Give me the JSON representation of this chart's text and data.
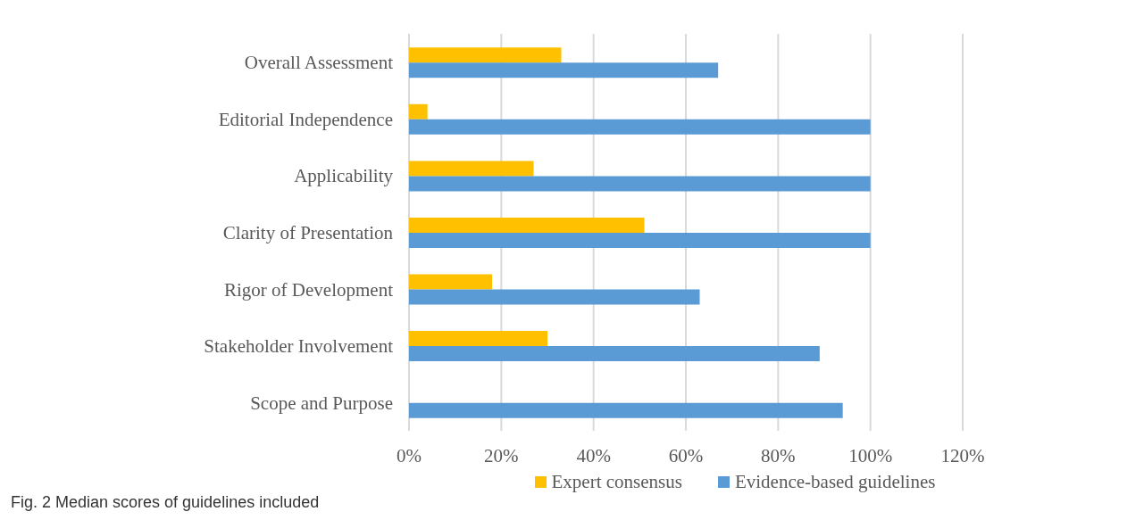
{
  "chart_data": {
    "type": "bar",
    "orientation": "horizontal",
    "categories": [
      "Overall Assessment",
      "Editorial Independence",
      "Applicability",
      "Clarity of Presentation",
      "Rigor of Development",
      "Stakeholder Involvement",
      "Scope and Purpose"
    ],
    "series": [
      {
        "name": "Expert consensus",
        "color": "#ffc000",
        "values": [
          33,
          4,
          27,
          51,
          18,
          30,
          0
        ]
      },
      {
        "name": "Evidence-based guidelines",
        "color": "#5b9bd5",
        "values": [
          67,
          100,
          100,
          100,
          63,
          89,
          94
        ]
      }
    ],
    "xlim": [
      0,
      120
    ],
    "xticks": [
      {
        "value": 0,
        "label": "0%"
      },
      {
        "value": 20,
        "label": "20%"
      },
      {
        "value": 40,
        "label": "40%"
      },
      {
        "value": 60,
        "label": "60%"
      },
      {
        "value": 80,
        "label": "80%"
      },
      {
        "value": 100,
        "label": "100%"
      },
      {
        "value": 120,
        "label": "120%"
      }
    ],
    "grid": "x",
    "legend": "bottom",
    "annotations": [
      "Fig. 2 Median scores of guidelines included"
    ]
  }
}
